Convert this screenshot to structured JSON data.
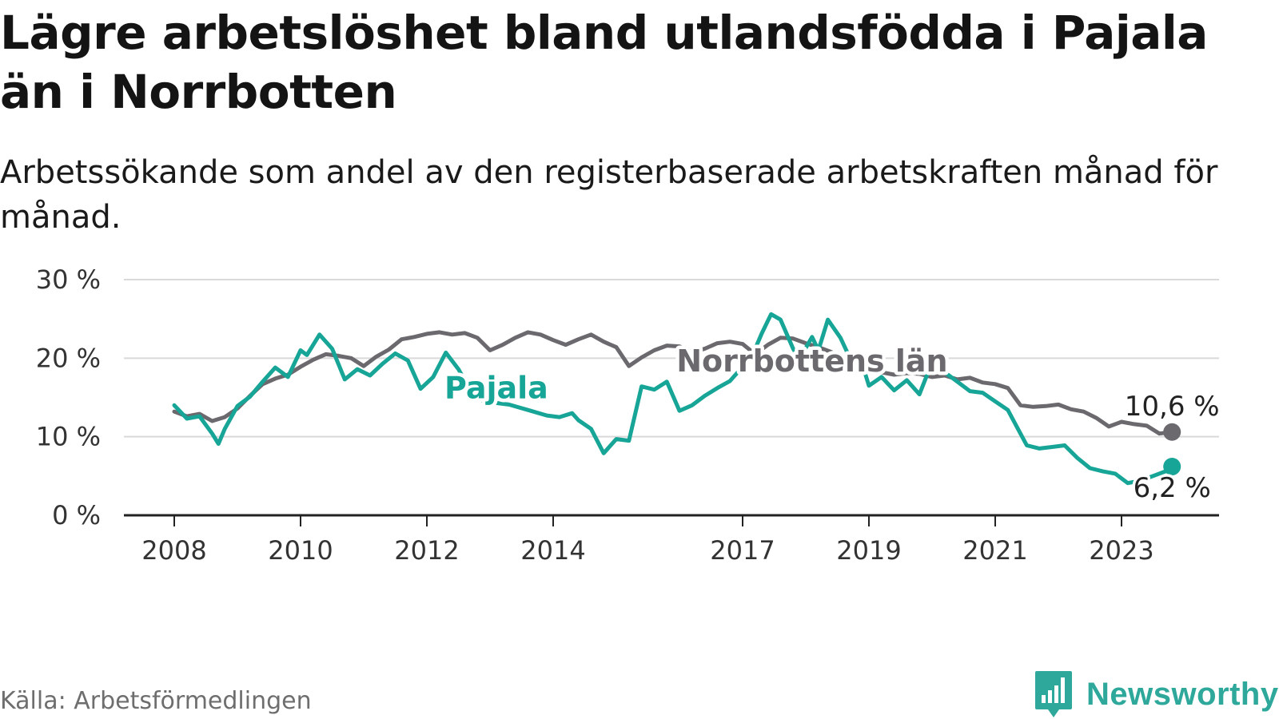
{
  "header": {
    "title": "Lägre arbetslöshet bland utlandsfödda i Pajala än i Norrbotten",
    "subtitle": "Arbetssökande som andel av den registerbaserade arbetskraften månad för månad."
  },
  "footer": {
    "source": "Källa: Arbetsförmedlingen",
    "brand": "Newsworthy"
  },
  "colors": {
    "pajala": "#16a596",
    "norrbotten": "#6b696e",
    "grid": "#d9d9d9",
    "axis": "#222222",
    "brand": "#2ea89b"
  },
  "chart_data": {
    "type": "line",
    "title": "Lägre arbetslöshet bland utlandsfödda i Pajala än i Norrbotten",
    "subtitle": "Arbetssökande som andel av den registerbaserade arbetskraften månad för månad.",
    "xlabel": "",
    "ylabel": "",
    "xlim": [
      2008.0,
      2024.0
    ],
    "ylim": [
      0,
      30
    ],
    "y_ticks": [
      0,
      10,
      20,
      30
    ],
    "y_tick_labels": [
      "0 %",
      "10 %",
      "20 %",
      "30 %"
    ],
    "x_ticks": [
      2008,
      2010,
      2012,
      2014,
      2017,
      2019,
      2021,
      2023
    ],
    "x_tick_labels": [
      "2008",
      "2010",
      "2012",
      "2014",
      "2017",
      "2019",
      "2021",
      "2023"
    ],
    "grid": true,
    "legend": "inline labels",
    "series": [
      {
        "name": "Norrbottens län",
        "label": "Norrbottens län",
        "color": "#6b696e",
        "end_label": "10,6 %",
        "label_anchor": [
          2018.1,
          18.3
        ],
        "points": [
          [
            2008.0,
            13.2
          ],
          [
            2008.2,
            12.6
          ],
          [
            2008.4,
            12.9
          ],
          [
            2008.6,
            12.0
          ],
          [
            2008.8,
            12.5
          ],
          [
            2009.0,
            13.6
          ],
          [
            2009.2,
            15.2
          ],
          [
            2009.4,
            16.7
          ],
          [
            2009.6,
            17.4
          ],
          [
            2009.8,
            17.9
          ],
          [
            2010.0,
            18.9
          ],
          [
            2010.2,
            19.8
          ],
          [
            2010.4,
            20.5
          ],
          [
            2010.6,
            20.3
          ],
          [
            2010.8,
            20.0
          ],
          [
            2011.0,
            19.0
          ],
          [
            2011.2,
            20.2
          ],
          [
            2011.4,
            21.1
          ],
          [
            2011.6,
            22.4
          ],
          [
            2011.8,
            22.7
          ],
          [
            2012.0,
            23.1
          ],
          [
            2012.2,
            23.3
          ],
          [
            2012.4,
            23.0
          ],
          [
            2012.6,
            23.2
          ],
          [
            2012.8,
            22.6
          ],
          [
            2013.0,
            21.0
          ],
          [
            2013.2,
            21.7
          ],
          [
            2013.4,
            22.6
          ],
          [
            2013.6,
            23.3
          ],
          [
            2013.8,
            23.0
          ],
          [
            2014.0,
            22.3
          ],
          [
            2014.2,
            21.7
          ],
          [
            2014.4,
            22.4
          ],
          [
            2014.6,
            23.0
          ],
          [
            2014.8,
            22.1
          ],
          [
            2015.0,
            21.4
          ],
          [
            2015.2,
            19.0
          ],
          [
            2015.4,
            20.1
          ],
          [
            2015.6,
            21.0
          ],
          [
            2015.8,
            21.6
          ],
          [
            2016.0,
            21.5
          ],
          [
            2016.2,
            20.7
          ],
          [
            2016.4,
            21.2
          ],
          [
            2016.6,
            21.9
          ],
          [
            2016.8,
            22.1
          ],
          [
            2017.0,
            21.8
          ],
          [
            2017.2,
            20.5
          ],
          [
            2017.4,
            21.7
          ],
          [
            2017.6,
            22.6
          ],
          [
            2017.8,
            22.5
          ],
          [
            2018.0,
            21.9
          ],
          [
            2018.2,
            21.4
          ],
          [
            2018.4,
            20.8
          ],
          [
            2018.6,
            20.1
          ],
          [
            2018.8,
            19.4
          ],
          [
            2019.0,
            18.6
          ],
          [
            2019.2,
            18.2
          ],
          [
            2019.4,
            17.9
          ],
          [
            2019.6,
            18.1
          ],
          [
            2019.8,
            18.0
          ],
          [
            2020.0,
            17.6
          ],
          [
            2020.2,
            17.8
          ],
          [
            2020.4,
            17.3
          ],
          [
            2020.6,
            17.5
          ],
          [
            2020.8,
            16.9
          ],
          [
            2021.0,
            16.7
          ],
          [
            2021.2,
            16.2
          ],
          [
            2021.4,
            14.0
          ],
          [
            2021.6,
            13.8
          ],
          [
            2021.8,
            13.9
          ],
          [
            2022.0,
            14.1
          ],
          [
            2022.2,
            13.5
          ],
          [
            2022.4,
            13.2
          ],
          [
            2022.6,
            12.4
          ],
          [
            2022.8,
            11.3
          ],
          [
            2023.0,
            11.9
          ],
          [
            2023.2,
            11.6
          ],
          [
            2023.4,
            11.4
          ],
          [
            2023.6,
            10.4
          ],
          [
            2023.8,
            10.6
          ]
        ]
      },
      {
        "name": "Pajala",
        "label": "Pajala",
        "color": "#16a596",
        "end_label": "6,2 %",
        "label_anchor": [
          2013.1,
          14.9
        ],
        "points": [
          [
            2008.0,
            14.0
          ],
          [
            2008.2,
            12.3
          ],
          [
            2008.4,
            12.6
          ],
          [
            2008.6,
            10.4
          ],
          [
            2008.7,
            9.1
          ],
          [
            2008.8,
            11.0
          ],
          [
            2009.0,
            13.9
          ],
          [
            2009.2,
            15.1
          ],
          [
            2009.4,
            17.0
          ],
          [
            2009.6,
            18.8
          ],
          [
            2009.8,
            17.6
          ],
          [
            2010.0,
            21.0
          ],
          [
            2010.1,
            20.4
          ],
          [
            2010.3,
            23.0
          ],
          [
            2010.5,
            21.2
          ],
          [
            2010.7,
            17.3
          ],
          [
            2010.9,
            18.6
          ],
          [
            2011.1,
            17.8
          ],
          [
            2011.3,
            19.3
          ],
          [
            2011.5,
            20.6
          ],
          [
            2011.7,
            19.7
          ],
          [
            2011.9,
            16.1
          ],
          [
            2012.1,
            17.6
          ],
          [
            2012.3,
            20.7
          ],
          [
            2012.5,
            18.6
          ],
          [
            2012.7,
            15.7
          ],
          [
            2012.9,
            14.5
          ],
          [
            2013.3,
            14.1
          ],
          [
            2013.6,
            13.4
          ],
          [
            2013.9,
            12.7
          ],
          [
            2014.1,
            12.5
          ],
          [
            2014.3,
            13.0
          ],
          [
            2014.4,
            12.1
          ],
          [
            2014.6,
            11.0
          ],
          [
            2014.8,
            7.9
          ],
          [
            2015.0,
            9.7
          ],
          [
            2015.2,
            9.5
          ],
          [
            2015.4,
            16.4
          ],
          [
            2015.6,
            16.0
          ],
          [
            2015.8,
            17.0
          ],
          [
            2016.0,
            13.3
          ],
          [
            2016.2,
            14.0
          ],
          [
            2016.4,
            15.2
          ],
          [
            2016.6,
            16.2
          ],
          [
            2016.8,
            17.1
          ],
          [
            2017.0,
            18.9
          ],
          [
            2017.2,
            21.2
          ],
          [
            2017.3,
            23.1
          ],
          [
            2017.45,
            25.6
          ],
          [
            2017.6,
            24.9
          ],
          [
            2017.8,
            21.2
          ],
          [
            2017.9,
            19.9
          ],
          [
            2018.1,
            22.7
          ],
          [
            2018.2,
            21.0
          ],
          [
            2018.35,
            24.9
          ],
          [
            2018.55,
            22.6
          ],
          [
            2018.7,
            20.0
          ],
          [
            2018.9,
            19.1
          ],
          [
            2019.0,
            16.5
          ],
          [
            2019.2,
            17.6
          ],
          [
            2019.4,
            15.9
          ],
          [
            2019.6,
            17.2
          ],
          [
            2019.8,
            15.4
          ],
          [
            2020.0,
            19.5
          ],
          [
            2020.2,
            18.2
          ],
          [
            2020.4,
            17.0
          ],
          [
            2020.6,
            15.8
          ],
          [
            2020.8,
            15.6
          ],
          [
            2021.0,
            14.5
          ],
          [
            2021.2,
            13.4
          ],
          [
            2021.3,
            11.9
          ],
          [
            2021.5,
            8.9
          ],
          [
            2021.7,
            8.5
          ],
          [
            2021.9,
            8.7
          ],
          [
            2022.1,
            8.9
          ],
          [
            2022.3,
            7.3
          ],
          [
            2022.5,
            6.0
          ],
          [
            2022.7,
            5.6
          ],
          [
            2022.9,
            5.3
          ],
          [
            2023.1,
            4.1
          ],
          [
            2023.3,
            4.4
          ],
          [
            2023.5,
            5.0
          ],
          [
            2023.7,
            5.6
          ],
          [
            2023.8,
            6.2
          ]
        ]
      }
    ],
    "annotations": [
      {
        "text": "10,6 %",
        "x": 2023.8,
        "y": 10.6,
        "series": "Norrbottens län"
      },
      {
        "text": "6,2 %",
        "x": 2023.8,
        "y": 6.2,
        "series": "Pajala"
      }
    ]
  }
}
